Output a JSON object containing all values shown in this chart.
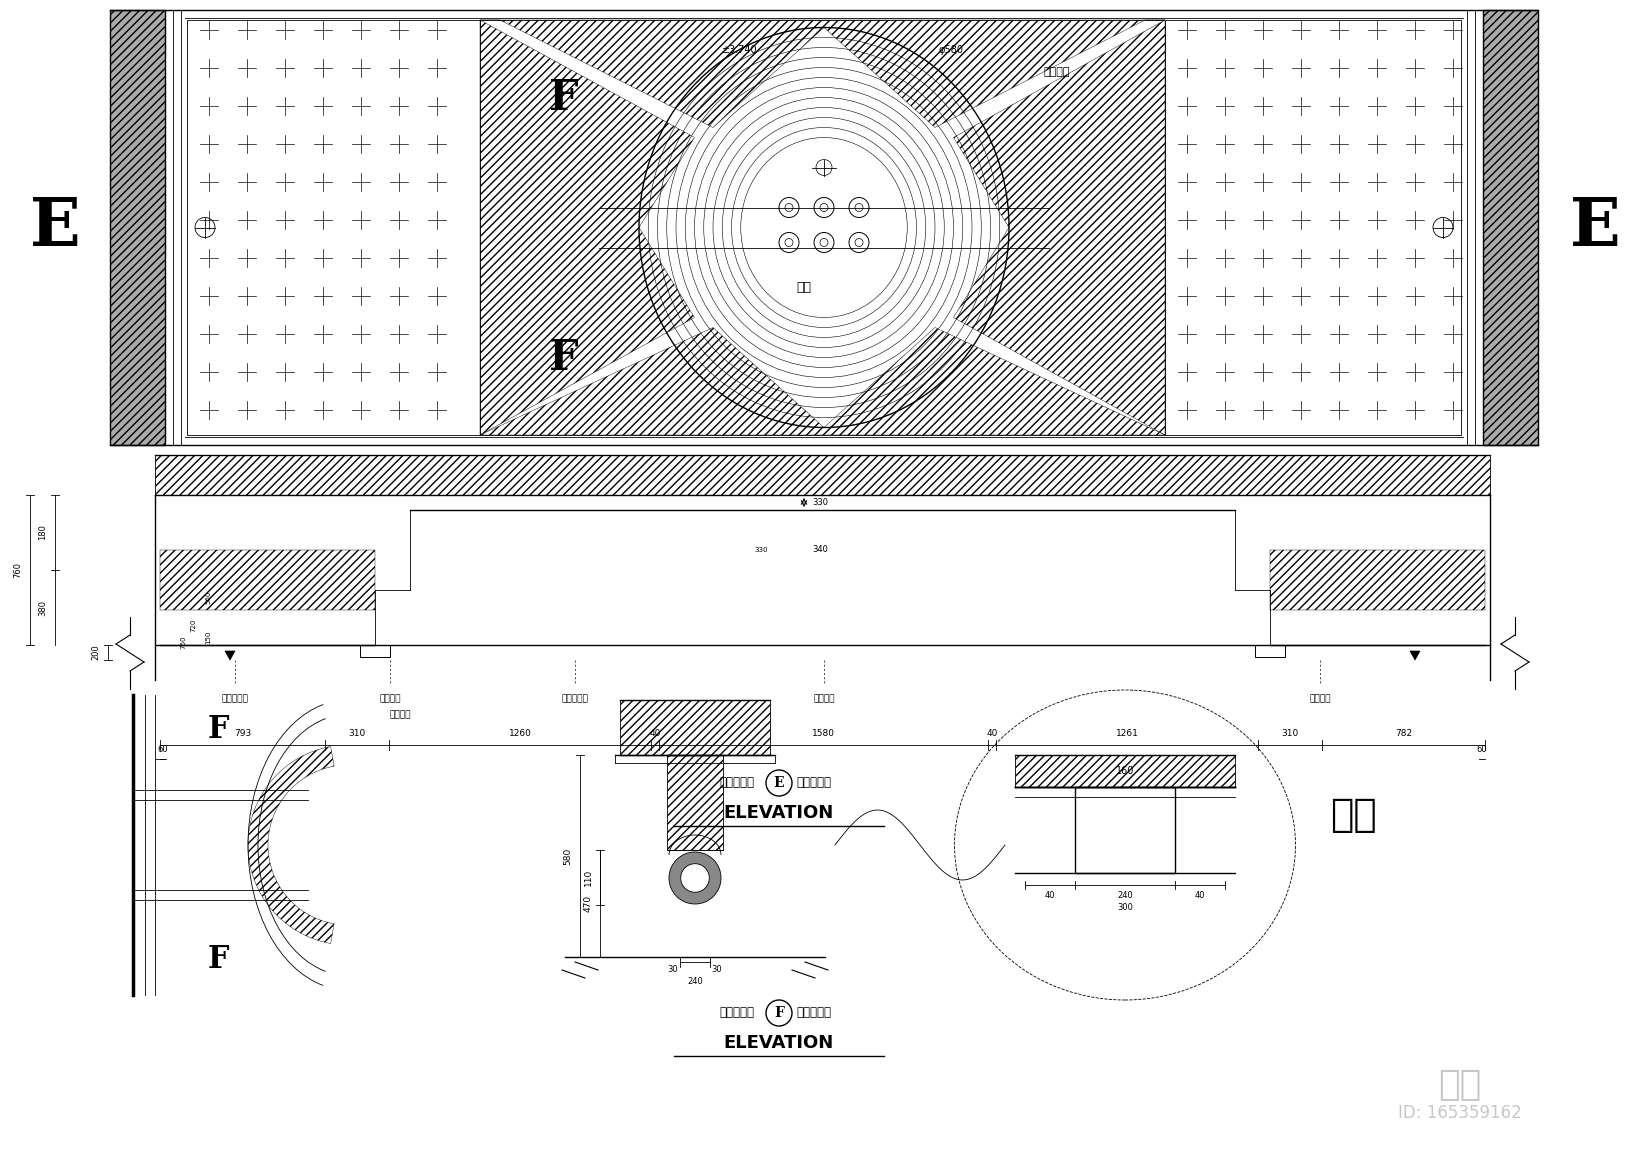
{
  "bg_color": "#ffffff",
  "lc": "#000000",
  "title1": "负一层客厅",
  "title1b": "天棚剖面图",
  "title2": "负一层客厅",
  "title2b": "假梁剖面图",
  "elevation_text": "ELEVATION",
  "label_E": "E",
  "label_F": "F",
  "label_jialiashuabai": "假梁刷白",
  "label_jinjing": "金镜",
  "label_pm1": "±3.740",
  "label_phi": "φ580",
  "labels_section": [
    "石膏阴角线",
    "墙纸饰面",
    "石膏阴角线",
    "金镜饰面",
    "暗藏灯带"
  ],
  "label_futan": "氟碳扫白",
  "dasample": "大样",
  "watermark": "知末",
  "watermark_id": "ID: 165359162",
  "dims_row": [
    "793",
    "310",
    "1260",
    "40",
    "1580",
    "40",
    "1261",
    "310",
    "782"
  ],
  "dims_sub": [
    "60",
    "60"
  ],
  "dims_left_v": [
    "760",
    "380",
    "180",
    "200"
  ]
}
